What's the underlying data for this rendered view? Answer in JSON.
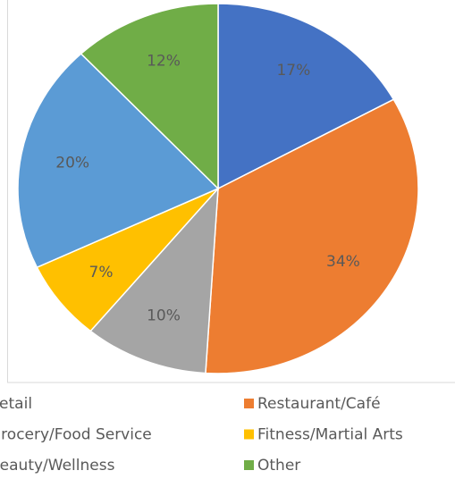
{
  "chart_data": {
    "type": "pie",
    "categories": [
      "Retail",
      "Restaurant/Café",
      "Grocery/Food Service",
      "Fitness/Martial Arts",
      "Beauty/Wellness",
      "Other"
    ],
    "values": [
      17,
      34,
      10,
      7,
      20,
      12
    ],
    "value_labels": [
      "17%",
      "34%",
      "10%",
      "7%",
      "20%",
      "12%"
    ],
    "colors": [
      "#4472c4",
      "#ed7d31",
      "#a5a5a5",
      "#ffc000",
      "#5b9bd5",
      "#70ad47"
    ],
    "legend": "bottom"
  }
}
